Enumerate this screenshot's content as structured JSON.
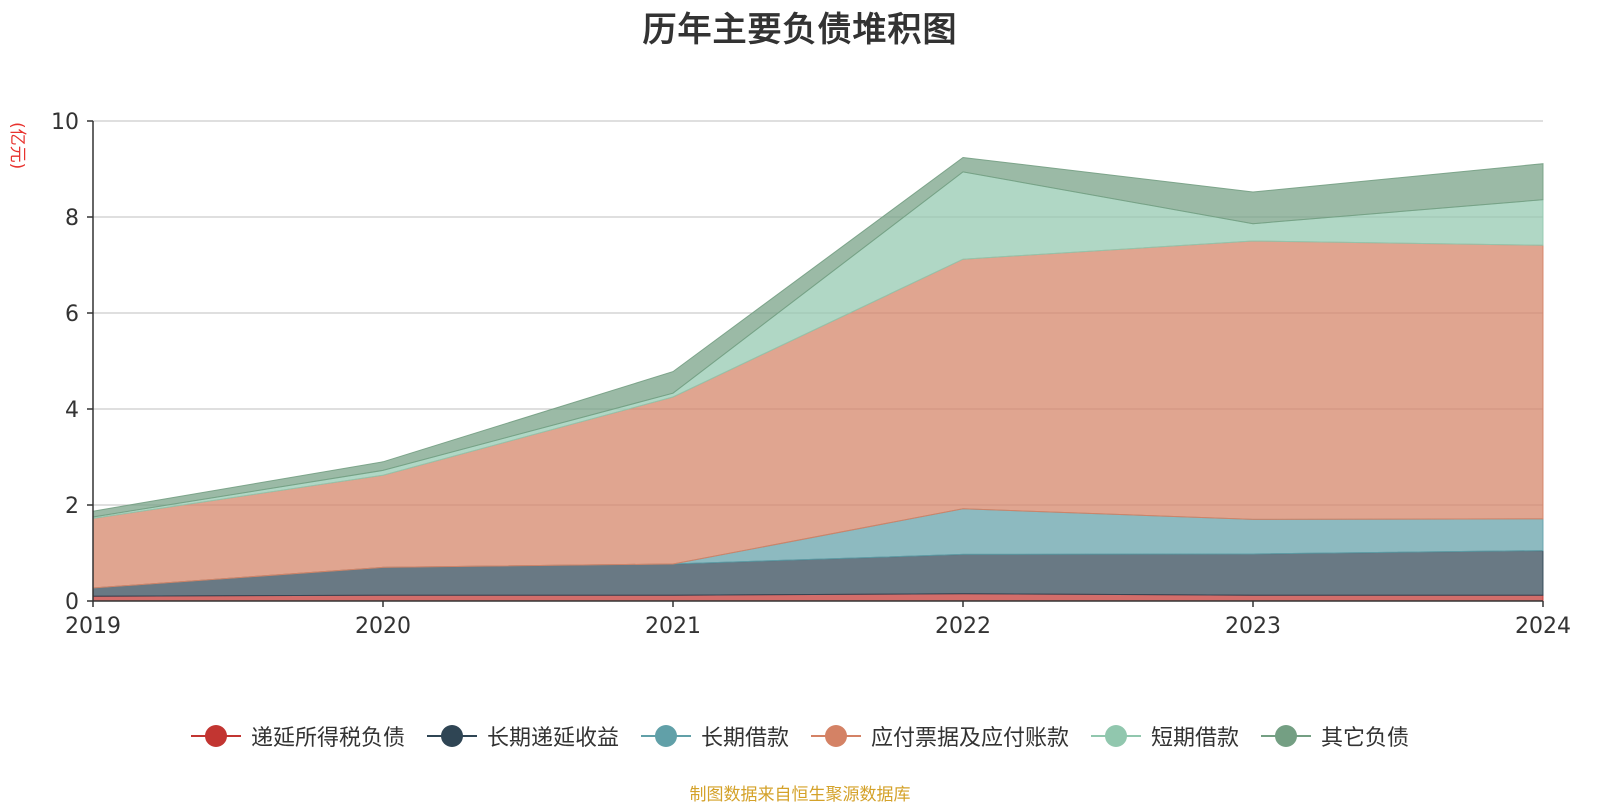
{
  "chart_data": {
    "type": "area",
    "stacked": true,
    "title": "历年主要负债堆积图",
    "ylabel": "(亿元)",
    "xlabel": "",
    "categories": [
      "2019",
      "2020",
      "2021",
      "2022",
      "2023",
      "2024"
    ],
    "ylim": [
      0,
      10
    ],
    "yticks": [
      "0",
      "2",
      "4",
      "6",
      "8",
      "10"
    ],
    "grid": true,
    "legend_position": "bottom",
    "series": [
      {
        "name": "递延所得税负债",
        "color": "#c23531",
        "values": [
          0.1,
          0.12,
          0.12,
          0.15,
          0.12,
          0.12
        ]
      },
      {
        "name": "长期递延收益",
        "color": "#2f4554",
        "values": [
          0.17,
          0.58,
          0.65,
          0.82,
          0.86,
          0.93
        ]
      },
      {
        "name": "长期借款",
        "color": "#61a0a8",
        "values": [
          0.0,
          0.0,
          0.0,
          0.95,
          0.72,
          0.66
        ]
      },
      {
        "name": "应付票据及应付账款",
        "color": "#d48265",
        "values": [
          1.45,
          1.92,
          3.48,
          5.2,
          5.8,
          5.7
        ]
      },
      {
        "name": "短期借款",
        "color": "#91c7ae",
        "values": [
          0.03,
          0.1,
          0.08,
          1.82,
          0.36,
          0.95
        ]
      },
      {
        "name": "其它负债",
        "color": "#749f83",
        "values": [
          0.12,
          0.18,
          0.45,
          0.3,
          0.66,
          0.75
        ]
      }
    ],
    "source_note": "制图数据来自恒生聚源数据库"
  }
}
